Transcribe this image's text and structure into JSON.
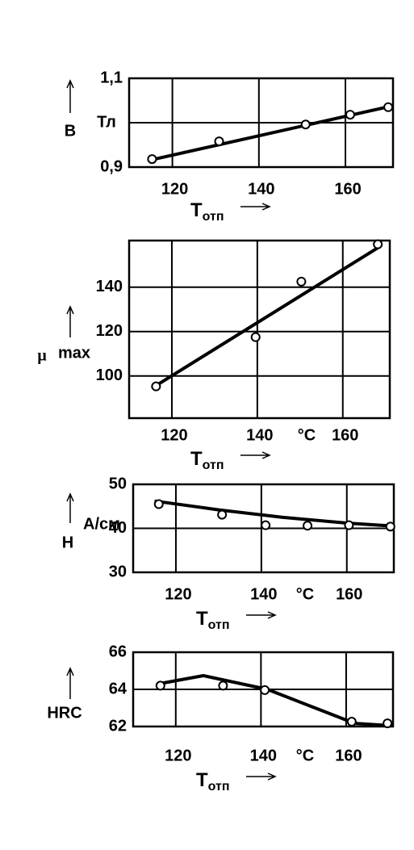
{
  "chart_data": [
    {
      "type": "scatter",
      "y_label": "B",
      "y_unit": "Тл",
      "x_label": "T",
      "x_label_sub": "отп",
      "xlim": [
        110,
        171
      ],
      "xticks": [
        120,
        140,
        160
      ],
      "ylim": [
        0.9,
        1.1
      ],
      "yticks": [
        {
          "value": 0.9,
          "label": "0,9"
        },
        {
          "value": 1.1,
          "label": "1,1"
        }
      ],
      "ygrid": [
        1.0
      ],
      "grid": true,
      "points": {
        "x": [
          115.3,
          130.8,
          150.8,
          161.1,
          169.9
        ],
        "values": [
          0.918,
          0.958,
          0.996,
          1.018,
          1.035
        ]
      },
      "curve": {
        "x": [
          115,
          170
        ],
        "values": [
          0.916,
          1.036
        ]
      }
    },
    {
      "type": "scatter",
      "y_label": "μ",
      "y_label_sub": "max",
      "x_label": "T",
      "x_label_sub": "отп",
      "x_unit": "°C",
      "xlim": [
        110,
        171
      ],
      "xticks": [
        120,
        140,
        160
      ],
      "ylim": [
        81,
        161
      ],
      "yticks": [
        100,
        120,
        140
      ],
      "grid": true,
      "points": {
        "x": [
          116.3,
          139.6,
          150.3,
          168.2
        ],
        "values": [
          95.3,
          117.5,
          142.5,
          159.3
        ]
      },
      "curve": {
        "x": [
          115.3,
          168.6
        ],
        "values": [
          94.5,
          158.2
        ]
      }
    },
    {
      "type": "scatter",
      "y_label": "H",
      "y_unit": "А/см",
      "x_label": "T",
      "x_label_sub": "отп",
      "x_unit": "°C",
      "xlim": [
        110,
        171
      ],
      "xticks": [
        120,
        140,
        160
      ],
      "ylim": [
        30,
        50
      ],
      "yticks": [
        30,
        40,
        50
      ],
      "grid": true,
      "points": {
        "x": [
          116,
          130.8,
          141,
          150.8,
          160.5,
          170.2
        ],
        "values": [
          45.5,
          43.1,
          40.7,
          40.6,
          40.7,
          40.4
        ]
      },
      "curve": {
        "x": [
          115,
          130,
          145,
          160,
          171
        ],
        "values": [
          46.2,
          44.2,
          42.5,
          41.2,
          40.5
        ]
      }
    },
    {
      "type": "scatter",
      "y_label": "HRC",
      "x_label": "T",
      "x_label_sub": "отп",
      "x_unit": "°C",
      "xlim": [
        110,
        171
      ],
      "xticks": [
        120,
        140,
        160
      ],
      "ylim": [
        62,
        66
      ],
      "yticks": [
        62,
        64,
        66
      ],
      "grid": true,
      "points": {
        "x": [
          116.4,
          131.1,
          140.9,
          161.3,
          169.7
        ],
        "values": [
          64.2,
          64.2,
          63.96,
          62.26,
          62.17
        ]
      },
      "curve": {
        "x": [
          116,
          126.5,
          141.5,
          154.6,
          162,
          171
        ],
        "values": [
          64.3,
          64.74,
          64,
          62.83,
          62.17,
          62.04
        ]
      }
    }
  ]
}
